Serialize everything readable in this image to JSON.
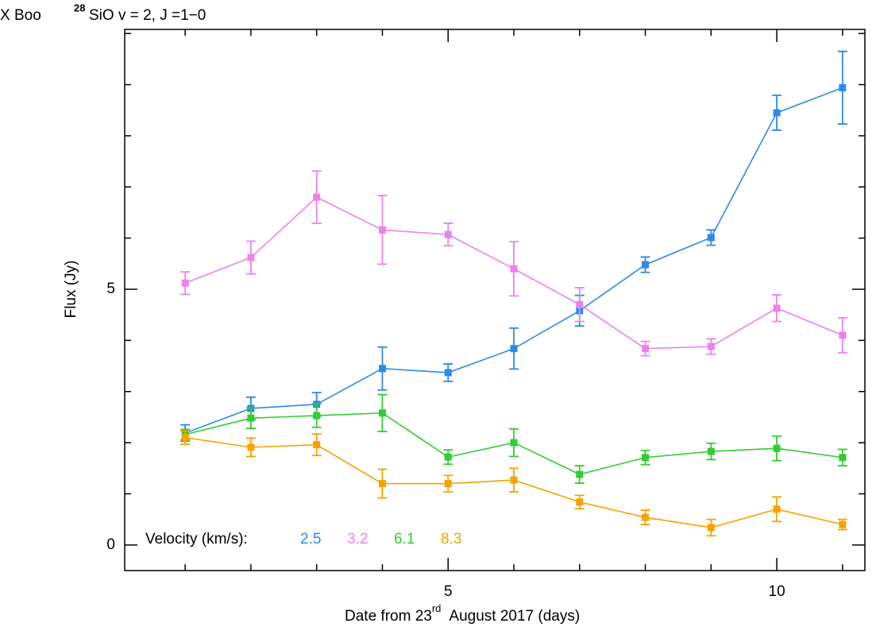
{
  "chart_data": {
    "type": "line",
    "title": {
      "source": "X Boo",
      "isotope": "28",
      "transition": "SiO v = 2, J =1−0"
    },
    "xlabel": {
      "before": "Date from 23",
      "sup": "rd",
      "after": "August 2017 (days)"
    },
    "ylabel": "Flux (Jy)",
    "legend_title": "Velocity (km/s):",
    "legend_position": "lower left",
    "xlim": [
      0.08,
      11.34
    ],
    "ylim": [
      -0.5,
      10.08
    ],
    "xticks": [
      5,
      10
    ],
    "yticks": [
      0,
      5
    ],
    "xminor_ticks": [
      1,
      2,
      3,
      4,
      6,
      7,
      8,
      9,
      11
    ],
    "yminor_ticks": [
      1,
      2,
      3,
      4,
      6,
      7,
      8,
      9,
      10
    ],
    "x": [
      1,
      2,
      3,
      4,
      5,
      6,
      7,
      8,
      9,
      10,
      11
    ],
    "series": [
      {
        "name": "2.5",
        "color": "#2a8ce8",
        "values": [
          2.19,
          2.67,
          2.75,
          3.45,
          3.37,
          3.84,
          4.58,
          5.48,
          6.01,
          8.45,
          8.94
        ],
        "errors": [
          0.16,
          0.22,
          0.23,
          0.42,
          0.17,
          0.4,
          0.3,
          0.15,
          0.15,
          0.34,
          0.71
        ]
      },
      {
        "name": "3.2",
        "color": "#ec82ec",
        "values": [
          5.12,
          5.62,
          6.8,
          6.16,
          6.07,
          5.4,
          4.7,
          3.84,
          3.88,
          4.63,
          4.1
        ],
        "errors": [
          0.22,
          0.32,
          0.51,
          0.67,
          0.22,
          0.53,
          0.33,
          0.14,
          0.15,
          0.26,
          0.34
        ]
      },
      {
        "name": "6.1",
        "color": "#33cc33",
        "values": [
          2.16,
          2.48,
          2.53,
          2.58,
          1.72,
          2.0,
          1.38,
          1.71,
          1.83,
          1.89,
          1.71
        ],
        "errors": [
          0.1,
          0.2,
          0.23,
          0.36,
          0.14,
          0.27,
          0.17,
          0.14,
          0.16,
          0.24,
          0.16
        ]
      },
      {
        "name": "8.3",
        "color": "#f5a300",
        "values": [
          2.1,
          1.91,
          1.96,
          1.2,
          1.2,
          1.27,
          0.84,
          0.54,
          0.34,
          0.7,
          0.4
        ],
        "errors": [
          0.13,
          0.18,
          0.21,
          0.28,
          0.16,
          0.23,
          0.13,
          0.14,
          0.16,
          0.24,
          0.1
        ]
      }
    ]
  }
}
